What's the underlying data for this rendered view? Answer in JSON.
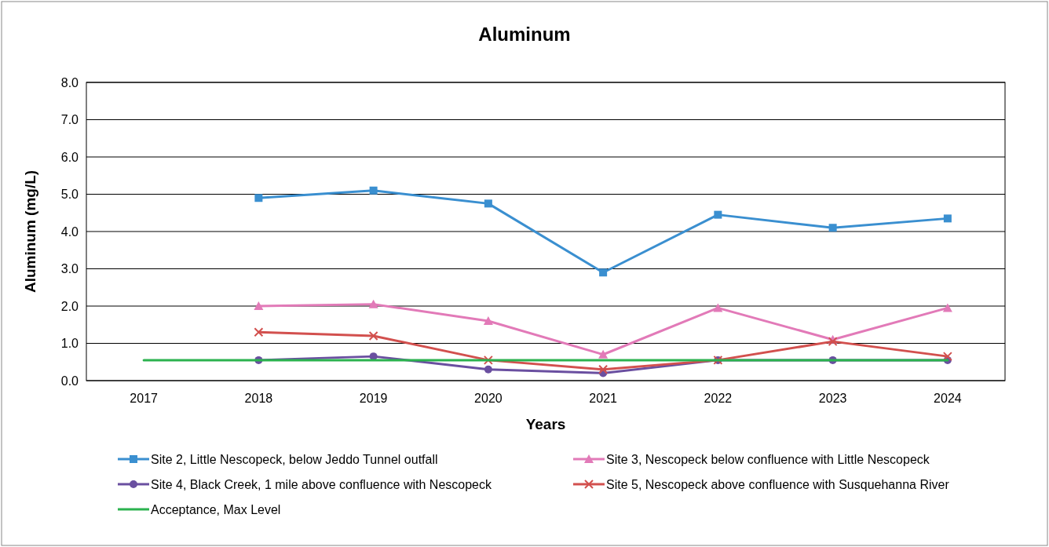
{
  "chart_data": {
    "type": "line",
    "title": "Aluminum",
    "xlabel": "Years",
    "ylabel": "Aluminum  (mg/L)",
    "categories": [
      "2017",
      "2018",
      "2019",
      "2020",
      "2021",
      "2022",
      "2023",
      "2024"
    ],
    "ylim": [
      0,
      8
    ],
    "yticks": [
      {
        "value": 0,
        "label": "0.0"
      },
      {
        "value": 1,
        "label": "1.0"
      },
      {
        "value": 2,
        "label": "2.0"
      },
      {
        "value": 3,
        "label": "3.0"
      },
      {
        "value": 4,
        "label": "4.0"
      },
      {
        "value": 5,
        "label": "5.0"
      },
      {
        "value": 6,
        "label": "6.0"
      },
      {
        "value": 7,
        "label": "7.0"
      },
      {
        "value": 8,
        "label": "8.0"
      }
    ],
    "grid": "y",
    "legend": "bottom",
    "line_style": "solid",
    "series": [
      {
        "name": "Site 2, Little Nescopeck, below Jeddo Tunnel outfall",
        "color": "#3a8fd0",
        "marker": "square",
        "values": [
          null,
          4.9,
          5.1,
          4.75,
          2.9,
          4.45,
          4.1,
          4.35
        ]
      },
      {
        "name": "Site 3, Nescopeck below confluence with Little Nescopeck",
        "color": "#e27ab8",
        "marker": "triangle",
        "values": [
          null,
          2.0,
          2.05,
          1.6,
          0.7,
          1.95,
          1.1,
          1.95
        ]
      },
      {
        "name": "Site 4, Black Creek, 1 mile above confluence with Nescopeck",
        "color": "#6a4fa0",
        "marker": "circle",
        "values": [
          null,
          0.55,
          0.65,
          0.3,
          0.2,
          0.55,
          0.55,
          0.55
        ]
      },
      {
        "name": "Site 5, Nescopeck above confluence with Susquehanna River",
        "color": "#d2504e",
        "marker": "cross",
        "values": [
          null,
          1.3,
          1.2,
          0.55,
          0.3,
          0.55,
          1.05,
          0.65
        ]
      },
      {
        "name": "Acceptance, Max Level",
        "color": "#2bb24f",
        "marker": "none",
        "values": [
          0.55,
          0.55,
          0.55,
          0.55,
          0.55,
          0.55,
          0.55,
          0.55
        ]
      }
    ]
  }
}
